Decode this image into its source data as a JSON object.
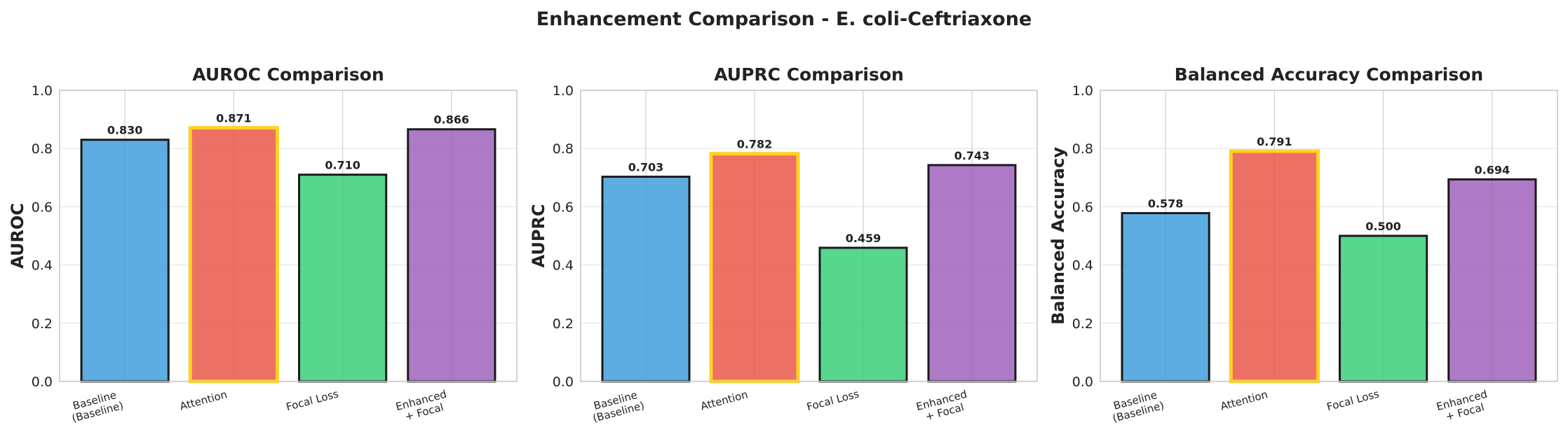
{
  "figure": {
    "title": "Enhancement Comparison - E. coli-Ceftriaxone"
  },
  "colors": {
    "bars": [
      "#3498db",
      "#e74c3c",
      "#2ecc71",
      "#9b59b6"
    ],
    "highlight_edge": "#ffd21f",
    "edge": "#1a1a1a"
  },
  "chart_data": [
    {
      "type": "bar",
      "title": "AUROC Comparison",
      "ylabel": "AUROC",
      "xlabel": "",
      "categories": [
        "Baseline\n(Baseline)",
        "Attention",
        "Focal Loss",
        "Enhanced\n+ Focal"
      ],
      "values": [
        0.83,
        0.871,
        0.71,
        0.866
      ],
      "value_labels": [
        "0.830",
        "0.871",
        "0.710",
        "0.866"
      ],
      "highlighted": "Attention",
      "ylim": [
        0,
        1.0
      ],
      "yticks": [
        "0.0",
        "0.2",
        "0.4",
        "0.6",
        "0.8",
        "1.0"
      ],
      "grid": true
    },
    {
      "type": "bar",
      "title": "AUPRC Comparison",
      "ylabel": "AUPRC",
      "xlabel": "",
      "categories": [
        "Baseline\n(Baseline)",
        "Attention",
        "Focal Loss",
        "Enhanced\n+ Focal"
      ],
      "values": [
        0.703,
        0.782,
        0.459,
        0.743
      ],
      "value_labels": [
        "0.703",
        "0.782",
        "0.459",
        "0.743"
      ],
      "highlighted": "Attention",
      "ylim": [
        0,
        1.0
      ],
      "yticks": [
        "0.0",
        "0.2",
        "0.4",
        "0.6",
        "0.8",
        "1.0"
      ],
      "grid": true
    },
    {
      "type": "bar",
      "title": "Balanced Accuracy Comparison",
      "ylabel": "Balanced Accuracy",
      "xlabel": "",
      "categories": [
        "Baseline\n(Baseline)",
        "Attention",
        "Focal Loss",
        "Enhanced\n+ Focal"
      ],
      "values": [
        0.578,
        0.791,
        0.5,
        0.694
      ],
      "value_labels": [
        "0.578",
        "0.791",
        "0.500",
        "0.694"
      ],
      "highlighted": "Attention",
      "ylim": [
        0,
        1.0
      ],
      "yticks": [
        "0.0",
        "0.2",
        "0.4",
        "0.6",
        "0.8",
        "1.0"
      ],
      "grid": true
    }
  ]
}
